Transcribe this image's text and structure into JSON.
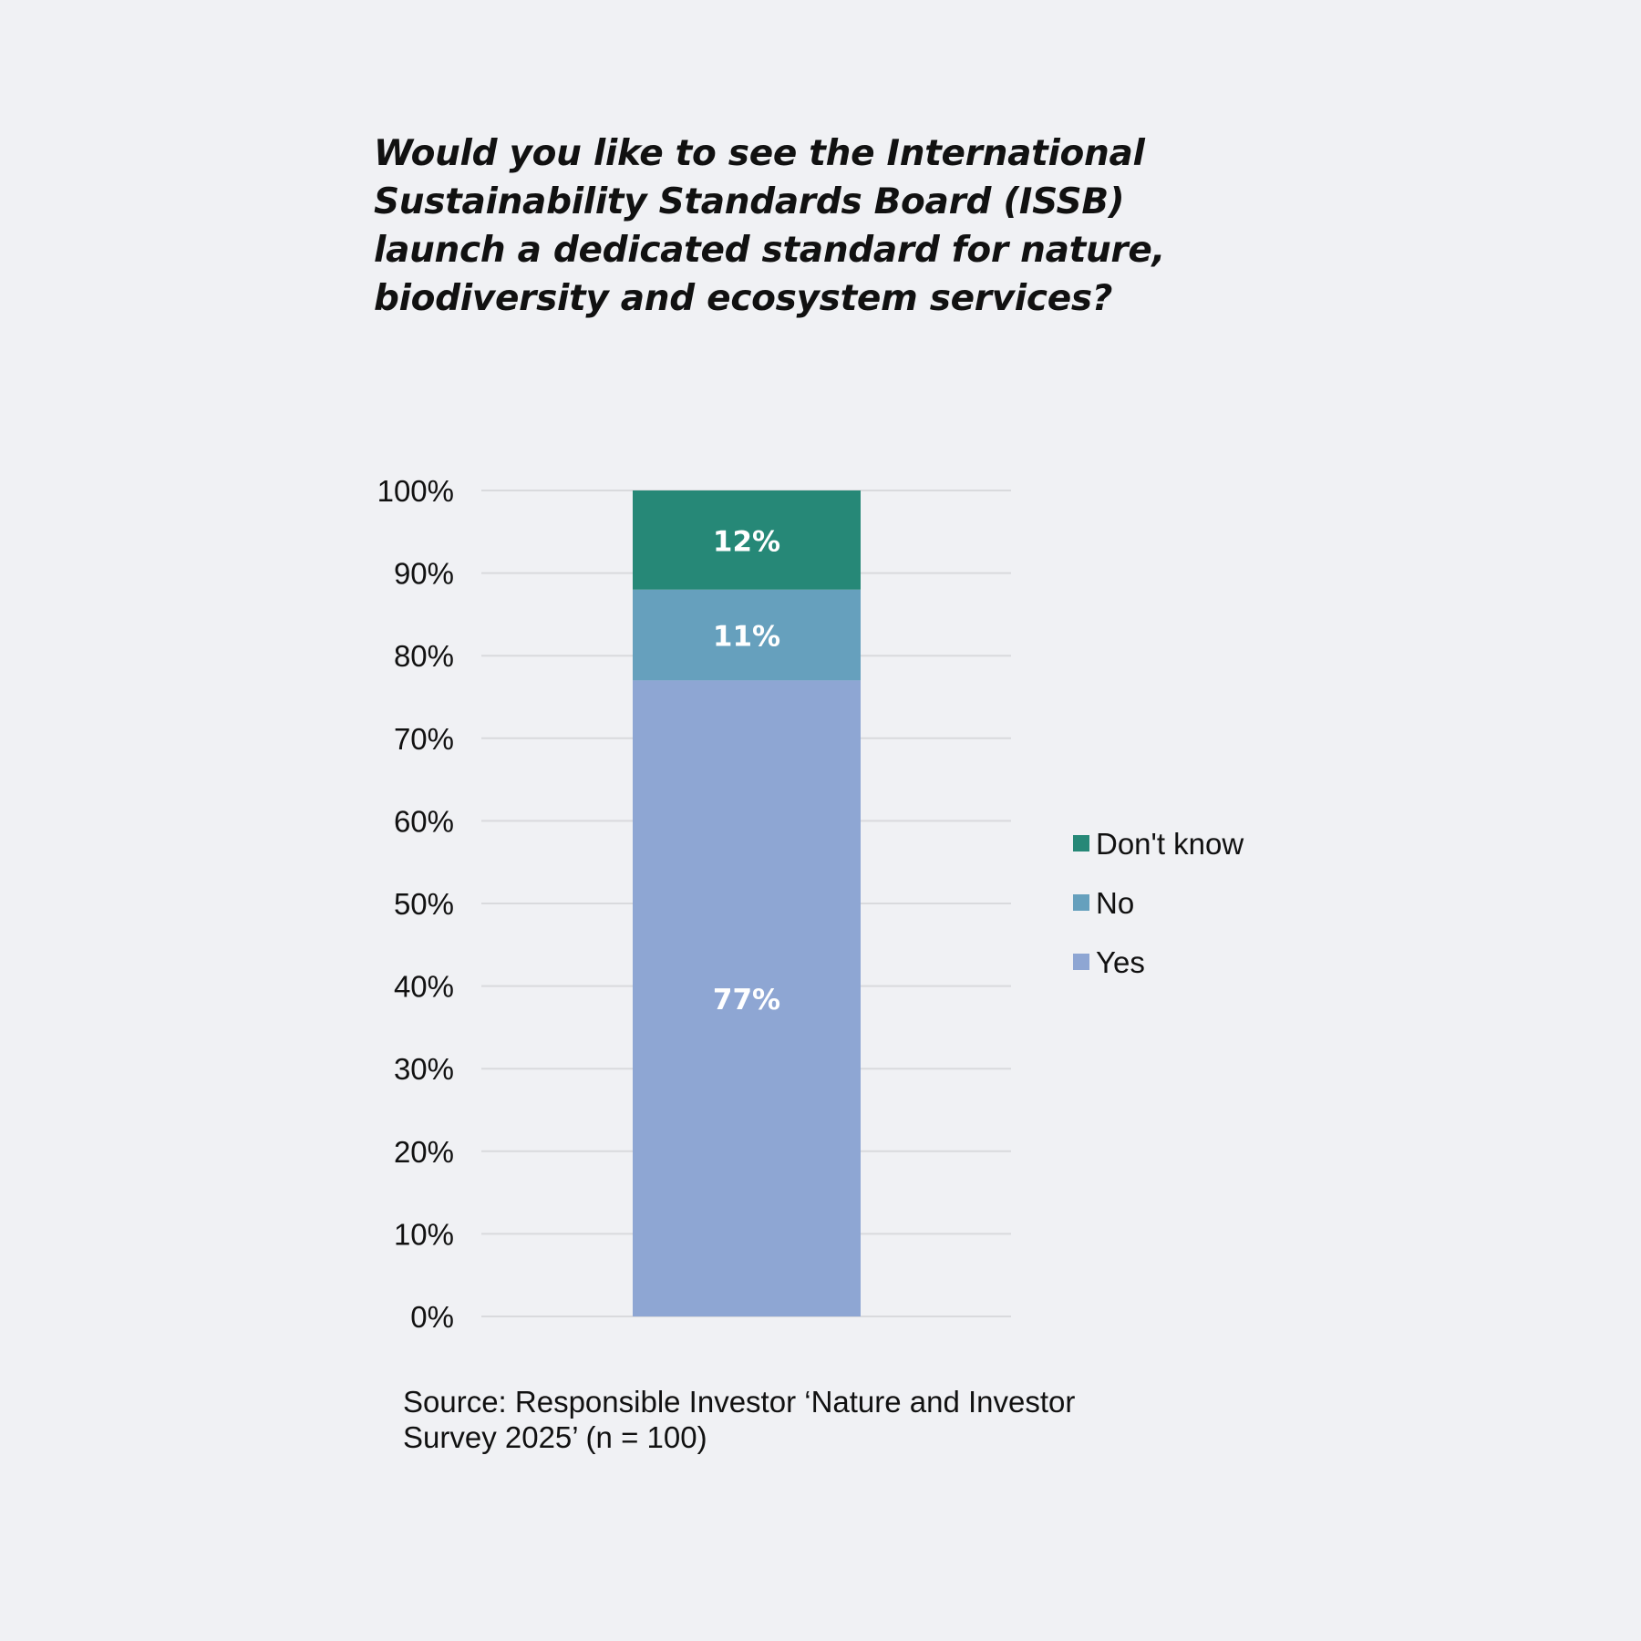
{
  "title_lines": [
    "Would you like to see the International",
    "Sustainability Standards Board (ISSB)",
    "launch a dedicated standard for nature,",
    "biodiversity and ecosystem services?"
  ],
  "source_lines": [
    "Source: Responsible Investor ‘Nature and Investor",
    "Survey 2025’ (n = 100)"
  ],
  "chart_data": {
    "type": "bar",
    "stacked": true,
    "categories": [
      ""
    ],
    "series": [
      {
        "name": "Yes",
        "values": [
          77
        ],
        "label": "77%",
        "color": "#8ea6d3"
      },
      {
        "name": "No",
        "values": [
          11
        ],
        "label": "11%",
        "color": "#66a0bd"
      },
      {
        "name": "Don't know",
        "values": [
          12
        ],
        "label": "12%",
        "color": "#268877"
      }
    ],
    "ylim": [
      0,
      100
    ],
    "yticks": [
      0,
      10,
      20,
      30,
      40,
      50,
      60,
      70,
      80,
      90,
      100
    ],
    "ytick_labels": [
      "0%",
      "10%",
      "20%",
      "30%",
      "40%",
      "50%",
      "60%",
      "70%",
      "80%",
      "90%",
      "100%"
    ],
    "grid": true,
    "legend": {
      "position": "right",
      "items": [
        "Don't know",
        "No",
        "Yes"
      ]
    },
    "gridline_color": "#d9dadd",
    "data_label_color": "#ffffff"
  }
}
